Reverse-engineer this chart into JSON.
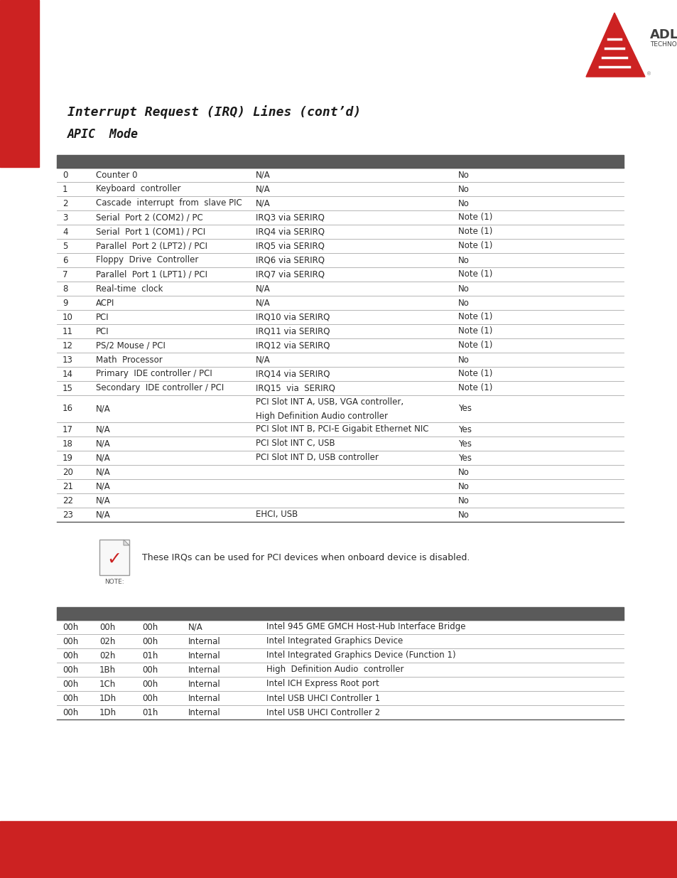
{
  "title1": "Interrupt Request (IRQ) Lines (cont’d)",
  "title2": "APIC  Mode",
  "header_color": "#5a5a5a",
  "row_line_color": "#aaaaaa",
  "text_color": "#2a2a2a",
  "bg_color": "#ffffff",
  "red_color": "#cc2222",
  "irq_table": [
    [
      "0",
      "Counter 0",
      "N/A",
      "No"
    ],
    [
      "1",
      "Keyboard  controller",
      "N/A",
      "No"
    ],
    [
      "2",
      "Cascade  interrupt  from  slave PIC",
      "N/A",
      "No"
    ],
    [
      "3",
      "Serial  Port 2 (COM2) / PC",
      "IRQ3 via SERIRQ",
      "Note (1)"
    ],
    [
      "4",
      "Serial  Port 1 (COM1) / PCI",
      "IRQ4 via SERIRQ",
      "Note (1)"
    ],
    [
      "5",
      "Parallel  Port 2 (LPT2) / PCI",
      "IRQ5 via SERIRQ",
      "Note (1)"
    ],
    [
      "6",
      "Floppy  Drive  Controller",
      "IRQ6 via SERIRQ",
      "No"
    ],
    [
      "7",
      "Parallel  Port 1 (LPT1) / PCI",
      "IRQ7 via SERIRQ",
      "Note (1)"
    ],
    [
      "8",
      "Real-time  clock",
      "N/A",
      "No"
    ],
    [
      "9",
      "ACPI",
      "N/A",
      "No"
    ],
    [
      "10",
      "PCI",
      "IRQ10 via SERIRQ",
      "Note (1)"
    ],
    [
      "11",
      "PCI",
      "IRQ11 via SERIRQ",
      "Note (1)"
    ],
    [
      "12",
      "PS/2 Mouse / PCI",
      "IRQ12 via SERIRQ",
      "Note (1)"
    ],
    [
      "13",
      "Math  Processor",
      "N/A",
      "No"
    ],
    [
      "14",
      "Primary  IDE controller / PCI",
      "IRQ14 via SERIRQ",
      "Note (1)"
    ],
    [
      "15",
      "Secondary  IDE controller / PCI",
      "IRQ15  via  SERIRQ",
      "Note (1)"
    ],
    [
      "16",
      "N/A",
      "PCI Slot INT A, USB, VGA controller,\nHigh Definition Audio controller",
      "Yes"
    ],
    [
      "17",
      "N/A",
      "PCI Slot INT B, PCI-E Gigabit Ethernet NIC",
      "Yes"
    ],
    [
      "18",
      "N/A",
      "PCI Slot INT C, USB",
      "Yes"
    ],
    [
      "19",
      "N/A",
      "PCI Slot INT D, USB controller",
      "Yes"
    ],
    [
      "20",
      "N/A",
      "",
      "No"
    ],
    [
      "21",
      "N/A",
      "",
      "No"
    ],
    [
      "22",
      "N/A",
      "",
      "No"
    ],
    [
      "23",
      "N/A",
      "EHCI, USB",
      "No"
    ]
  ],
  "note_text": "These IRQs can be used for PCI devices when onboard device is disabled.",
  "pci_table": [
    [
      "00h",
      "00h",
      "00h",
      "N/A",
      "Intel 945 GME GMCH Host-Hub Interface Bridge"
    ],
    [
      "00h",
      "02h",
      "00h",
      "Internal",
      "Intel Integrated Graphics Device"
    ],
    [
      "00h",
      "02h",
      "01h",
      "Internal",
      "Intel Integrated Graphics Device (Function 1)"
    ],
    [
      "00h",
      "1Bh",
      "00h",
      "Internal",
      "High  Definition Audio  controller"
    ],
    [
      "00h",
      "1Ch",
      "00h",
      "Internal",
      "Intel ICH Express Root port"
    ],
    [
      "00h",
      "1Dh",
      "00h",
      "Internal",
      "Intel USB UHCI Controller 1"
    ],
    [
      "00h",
      "1Dh",
      "01h",
      "Internal",
      "Intel USB UHCI Controller 2"
    ]
  ]
}
